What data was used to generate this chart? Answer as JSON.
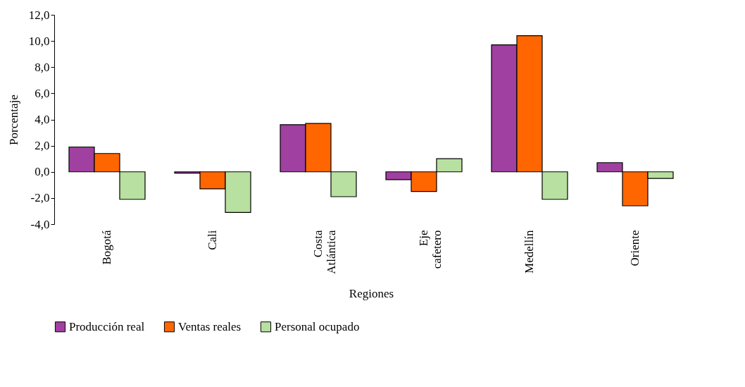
{
  "chart_data": {
    "type": "bar",
    "xlabel": "Regiones",
    "ylabel": "Porcentaje",
    "categories": [
      "Bogotá",
      "Cali",
      "Costa Atlántica",
      "Eje cafetero",
      "Medellín",
      "Oriente"
    ],
    "series": [
      {
        "name": "Producción real",
        "color": "#a040a0",
        "values": [
          1.9,
          -0.1,
          3.6,
          -0.6,
          9.7,
          0.7
        ]
      },
      {
        "name": "Ventas reales",
        "color": "#ff6600",
        "values": [
          1.4,
          -1.3,
          3.7,
          -1.5,
          10.4,
          -2.6
        ]
      },
      {
        "name": "Personal ocupado",
        "color": "#b8e0a0",
        "values": [
          -2.1,
          -3.1,
          -1.9,
          1.0,
          -2.1,
          -0.5
        ]
      }
    ],
    "ylim": [
      -4,
      12
    ],
    "yticks": [
      {
        "value": -4,
        "label": "-4,0"
      },
      {
        "value": -2,
        "label": "-2,0"
      },
      {
        "value": 0,
        "label": "0,0"
      },
      {
        "value": 2,
        "label": "2,0"
      },
      {
        "value": 4,
        "label": "4,0"
      },
      {
        "value": 6,
        "label": "6,0"
      },
      {
        "value": 8,
        "label": "8,0"
      },
      {
        "value": 10,
        "label": "10,0"
      },
      {
        "value": 12,
        "label": "12,0"
      }
    ],
    "grid": false,
    "legend": "bottom"
  }
}
